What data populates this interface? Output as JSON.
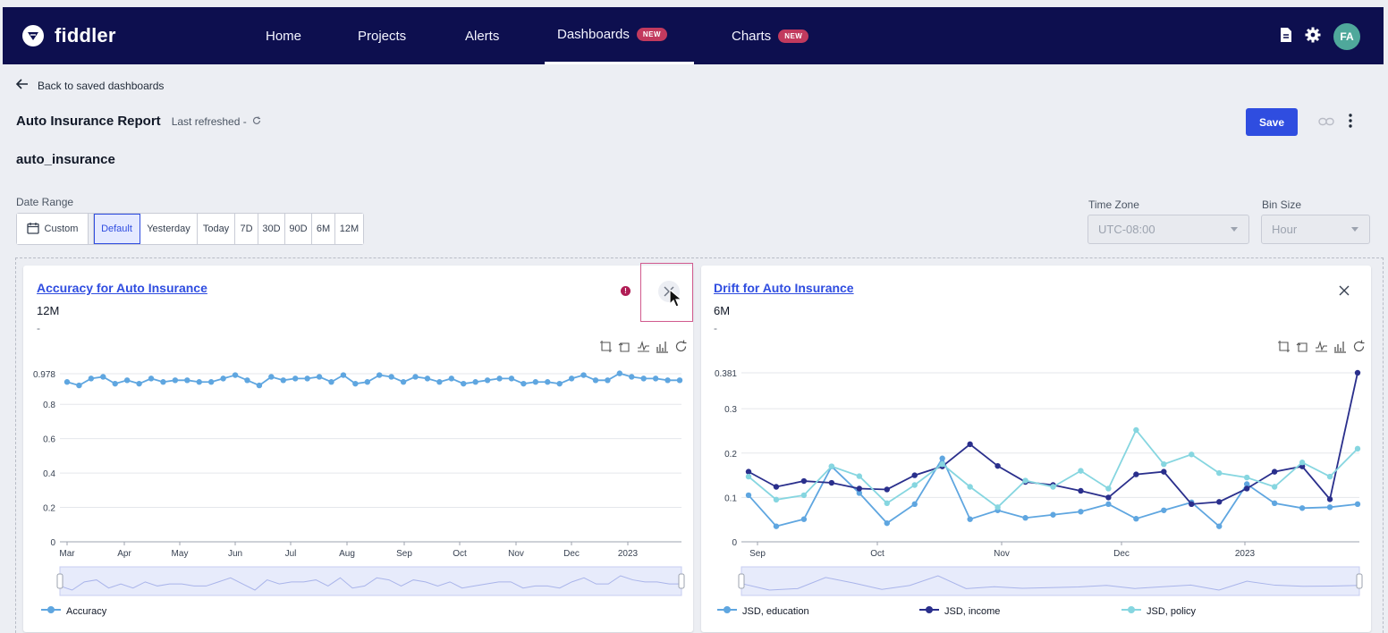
{
  "nav": {
    "brand": "fiddler",
    "items": [
      {
        "label": "Home",
        "badge": null
      },
      {
        "label": "Projects",
        "badge": null
      },
      {
        "label": "Alerts",
        "badge": null
      },
      {
        "label": "Dashboards",
        "badge": "NEW"
      },
      {
        "label": "Charts",
        "badge": "NEW"
      }
    ],
    "avatar_initials": "FA"
  },
  "header": {
    "back_label": "Back to saved dashboards",
    "title": "Auto Insurance Report",
    "last_refreshed": "Last refreshed -",
    "model_name": "auto_insurance",
    "save_label": "Save"
  },
  "filters": {
    "date_range_label": "Date Range",
    "custom_label": "Custom",
    "ranges": [
      "Default",
      "Yesterday",
      "Today",
      "7D",
      "30D",
      "90D",
      "6M",
      "12M"
    ],
    "selected_range": "Default",
    "time_zone_label": "Time Zone",
    "time_zone_value": "UTC-08:00",
    "bin_size_label": "Bin Size",
    "bin_size_value": "Hour"
  },
  "colors": {
    "accent": "#2f4de0",
    "nav_bg": "#0d0f4f",
    "series_light": "#5fa6e0",
    "series_dark": "#2a2f8c",
    "series_teal": "#86d6e0"
  },
  "cards": [
    {
      "title": "Accuracy for Auto Insurance",
      "range": "12M",
      "subtitle": "-",
      "legend": [
        "Accuracy"
      ]
    },
    {
      "title": "Drift for Auto Insurance",
      "range": "6M",
      "subtitle": "-",
      "legend": [
        "JSD, education",
        "JSD, income",
        "JSD, policy"
      ]
    }
  ],
  "chart_data": [
    {
      "type": "line",
      "title": "Accuracy for Auto Insurance",
      "xlabel": "",
      "ylabel": "",
      "ylim": [
        0,
        0.978
      ],
      "yticks": [
        "0",
        "0.2",
        "0.4",
        "0.6",
        "0.8",
        "0.978"
      ],
      "xticks": [
        "Mar",
        "Apr",
        "May",
        "Jun",
        "Jul",
        "Aug",
        "Sep",
        "Oct",
        "Nov",
        "Dec",
        "2023"
      ],
      "series": [
        {
          "name": "Accuracy",
          "values": [
            0.93,
            0.91,
            0.95,
            0.96,
            0.92,
            0.94,
            0.92,
            0.95,
            0.93,
            0.94,
            0.94,
            0.93,
            0.93,
            0.95,
            0.97,
            0.94,
            0.91,
            0.96,
            0.94,
            0.95,
            0.95,
            0.96,
            0.93,
            0.97,
            0.92,
            0.93,
            0.97,
            0.96,
            0.93,
            0.96,
            0.95,
            0.93,
            0.95,
            0.92,
            0.93,
            0.94,
            0.95,
            0.95,
            0.92,
            0.93,
            0.93,
            0.92,
            0.95,
            0.97,
            0.94,
            0.94,
            0.98,
            0.96,
            0.95,
            0.95,
            0.94,
            0.94
          ]
        }
      ]
    },
    {
      "type": "line",
      "title": "Drift for Auto Insurance",
      "xlabel": "",
      "ylabel": "",
      "ylim": [
        0,
        0.381
      ],
      "yticks": [
        "0",
        "0.1",
        "0.2",
        "0.3",
        "0.381"
      ],
      "xticks": [
        "Sep",
        "Oct",
        "Nov",
        "Dec",
        "2023"
      ],
      "series": [
        {
          "name": "JSD, education",
          "values": [
            0.105,
            0.035,
            0.051,
            0.17,
            0.11,
            0.042,
            0.085,
            0.188,
            0.051,
            0.071,
            0.054,
            0.061,
            0.068,
            0.085,
            0.052,
            0.071,
            0.089,
            0.035,
            0.13,
            0.087,
            0.076,
            0.078,
            0.085
          ]
        },
        {
          "name": "JSD, income",
          "values": [
            0.158,
            0.124,
            0.137,
            0.133,
            0.12,
            0.118,
            0.15,
            0.17,
            0.22,
            0.171,
            0.135,
            0.128,
            0.115,
            0.1,
            0.152,
            0.158,
            0.085,
            0.09,
            0.12,
            0.158,
            0.17,
            0.096,
            0.381
          ]
        },
        {
          "name": "JSD, policy",
          "values": [
            0.147,
            0.095,
            0.105,
            0.17,
            0.148,
            0.087,
            0.128,
            0.175,
            0.124,
            0.078,
            0.138,
            0.124,
            0.16,
            0.12,
            0.252,
            0.175,
            0.197,
            0.155,
            0.145,
            0.124,
            0.179,
            0.147,
            0.21
          ]
        }
      ]
    }
  ]
}
